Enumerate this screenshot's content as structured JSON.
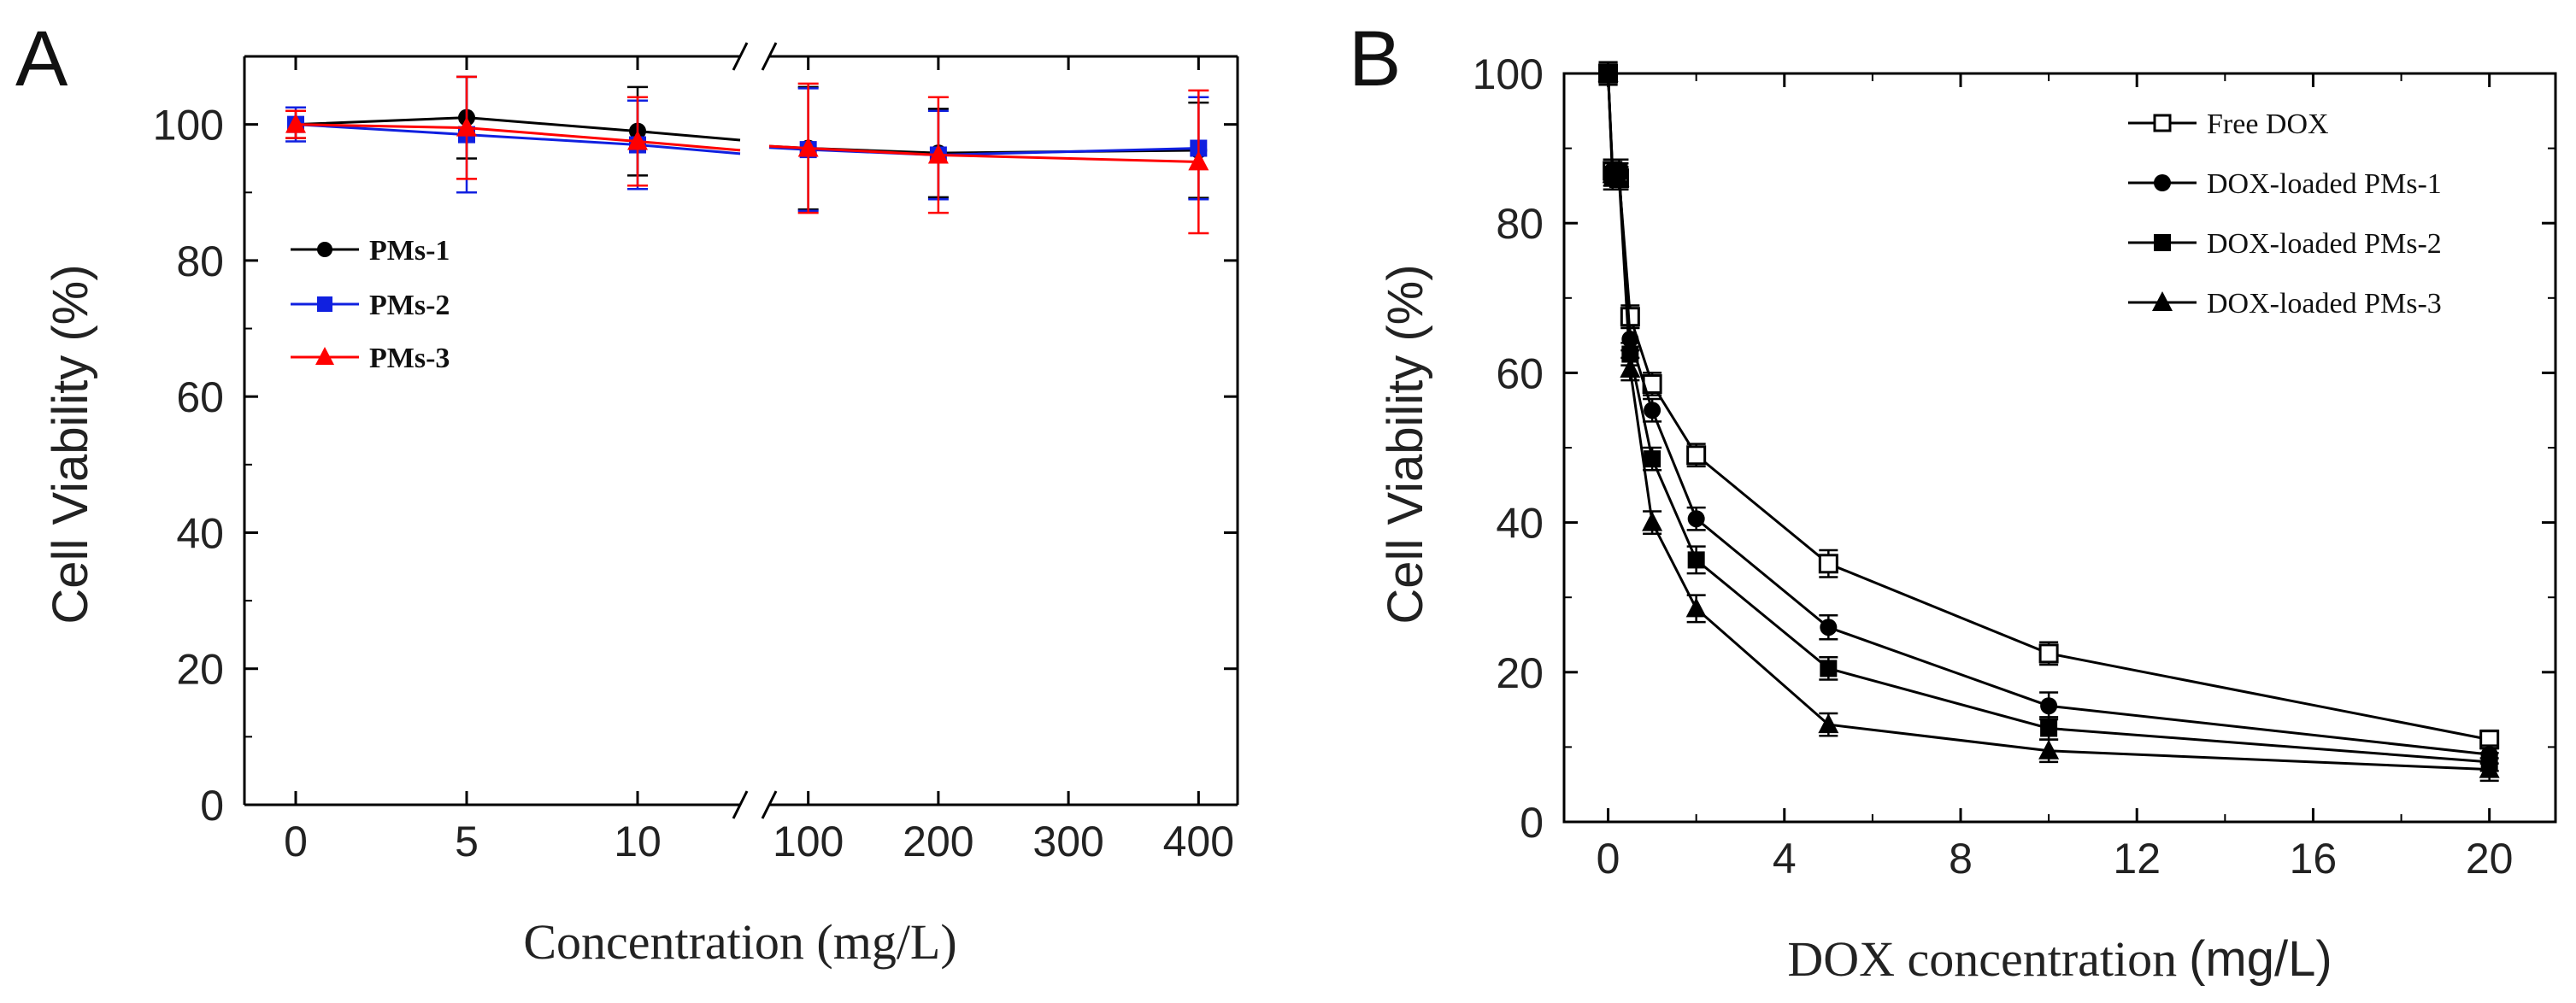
{
  "chart_data": [
    {
      "panel": "A",
      "type": "line",
      "xlabel": "Concentration (mg/L)",
      "ylabel": "Cell Viability (%)",
      "ylim": [
        0,
        110
      ],
      "yticks": [
        "0",
        "20",
        "40",
        "60",
        "80",
        "100"
      ],
      "x_break": "between 10 and 100 (broken axis)",
      "segment1": {
        "xlim": [
          -1.5,
          13
        ],
        "xticks": [
          "0",
          "5",
          "10"
        ]
      },
      "segment2": {
        "xlim": [
          70,
          430
        ],
        "xticks": [
          "100",
          "200",
          "300",
          "400"
        ]
      },
      "legend": {
        "position": "top-left"
      },
      "series": [
        {
          "name": "PMs-1",
          "color": "#000000",
          "marker": "circle",
          "x": [
            0,
            5,
            10,
            100,
            200,
            400
          ],
          "y": [
            100,
            101,
            99,
            96.5,
            95.8,
            96.2
          ],
          "err": [
            2,
            6,
            6.5,
            9,
            6.5,
            7
          ]
        },
        {
          "name": "PMs-2",
          "color": "#1020e0",
          "marker": "square",
          "x": [
            0,
            5,
            10,
            100,
            200,
            400
          ],
          "y": [
            100,
            98.5,
            97,
            96.3,
            95.5,
            96.5
          ],
          "err": [
            2.5,
            8.5,
            6.5,
            9,
            6.5,
            7.5
          ]
        },
        {
          "name": "PMs-3",
          "color": "#ff0000",
          "marker": "triangle",
          "x": [
            0,
            5,
            10,
            100,
            200,
            400
          ],
          "y": [
            100,
            99.5,
            97.5,
            96.5,
            95.5,
            94.5
          ],
          "err": [
            2,
            7.5,
            6.5,
            9.5,
            8.5,
            10.5
          ]
        }
      ]
    },
    {
      "panel": "B",
      "type": "line",
      "xlabel": "DOX concentration",
      "xlabel_unit": "(mg/L)",
      "ylabel": "Cell Viability (%)",
      "xlim": [
        -1,
        21.5
      ],
      "ylim": [
        0,
        100
      ],
      "xticks": [
        "0",
        "4",
        "8",
        "12",
        "16",
        "20"
      ],
      "yticks": [
        "0",
        "20",
        "40",
        "60",
        "80",
        "100"
      ],
      "legend": {
        "position": "top-right"
      },
      "series": [
        {
          "name": "Free DOX",
          "color": "#000000",
          "marker": "open-square",
          "x": [
            0,
            0.1,
            0.25,
            0.5,
            1,
            2,
            5,
            10,
            20
          ],
          "y": [
            100,
            87,
            86,
            67.5,
            58.5,
            49,
            34.5,
            22.5,
            11
          ],
          "err": [
            1.5,
            1.5,
            1.5,
            1.5,
            1.5,
            1.5,
            1.8,
            1.5,
            1.2
          ]
        },
        {
          "name": "DOX-loaded PMs-1",
          "color": "#000000",
          "marker": "circle",
          "x": [
            0,
            0.1,
            0.25,
            0.5,
            1,
            2,
            5,
            10,
            20
          ],
          "y": [
            100,
            87,
            86.5,
            64.5,
            55,
            40.5,
            26,
            15.5,
            9
          ],
          "err": [
            1.5,
            1.5,
            1.5,
            1.5,
            1.5,
            1.5,
            1.6,
            1.8,
            1.2
          ]
        },
        {
          "name": "DOX-loaded PMs-2",
          "color": "#000000",
          "marker": "square",
          "x": [
            0,
            0.1,
            0.25,
            0.5,
            1,
            2,
            5,
            10,
            20
          ],
          "y": [
            100,
            86,
            87,
            62.5,
            48.5,
            35,
            20.5,
            12.5,
            8
          ],
          "err": [
            1.5,
            1.5,
            1.5,
            1.5,
            1.5,
            1.8,
            1.5,
            1.5,
            1.2
          ]
        },
        {
          "name": "DOX-loaded PMs-3",
          "color": "#000000",
          "marker": "triangle",
          "x": [
            0,
            0.1,
            0.25,
            0.5,
            1,
            2,
            5,
            10,
            20
          ],
          "y": [
            100,
            86.5,
            86,
            60.5,
            40,
            28.5,
            13,
            9.5,
            7
          ],
          "err": [
            1.5,
            1.5,
            1.5,
            1.5,
            1.5,
            1.8,
            1.5,
            1.5,
            1.5
          ]
        }
      ]
    }
  ]
}
